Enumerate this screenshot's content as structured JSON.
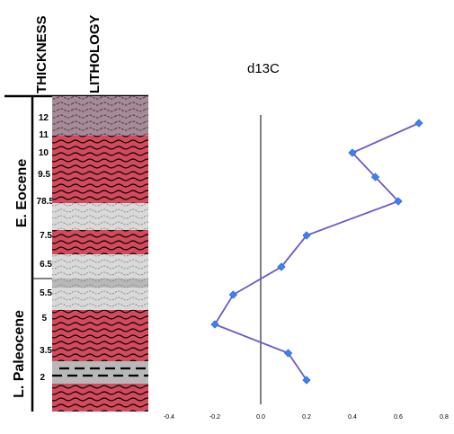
{
  "columns": {
    "thickness": "THICKNESS",
    "lithology": "LITHOLOGY"
  },
  "epochs": {
    "upper": "E. Eocene",
    "lower": "L. Paleocene"
  },
  "thickness_labels": [
    "12",
    "11",
    "10",
    "9.5",
    "78.5",
    "7.5",
    "6.5",
    "5.5",
    "5",
    "3.5",
    "2"
  ],
  "lithology_colors": {
    "red": "#d24a5c",
    "mauve": "#a78a98",
    "light_gray": "#d9d9d9",
    "mid_gray": "#b8b8b8",
    "black": "#000000"
  },
  "chart_data": {
    "type": "line",
    "title": "d13C",
    "xlabel": "",
    "ylabel": "",
    "xlim": [
      -0.4,
      0.8
    ],
    "x_ticks": [
      "-0.4",
      "-0.2",
      "0.0",
      "0.2",
      "0.4",
      "0.6",
      "0.8"
    ],
    "zero_line": 0.0,
    "series": [
      {
        "x": [
          0.69,
          0.4,
          0.5,
          0.6,
          0.2,
          0.09,
          -0.12,
          -0.2,
          0.12,
          0.2
        ],
        "y": [
          12,
          10,
          9.5,
          8.5,
          7.5,
          6.5,
          5.5,
          5,
          3.5,
          2
        ],
        "line_color": "#6a5acd",
        "marker": "diamond",
        "marker_color": "#3b82f6"
      }
    ]
  }
}
